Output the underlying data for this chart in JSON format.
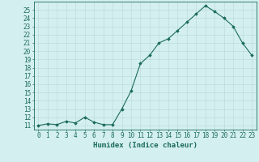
{
  "x": [
    0,
    1,
    2,
    3,
    4,
    5,
    6,
    7,
    8,
    9,
    10,
    11,
    12,
    13,
    14,
    15,
    16,
    17,
    18,
    19,
    20,
    21,
    22,
    23
  ],
  "y": [
    11.0,
    11.2,
    11.1,
    11.5,
    11.3,
    12.0,
    11.4,
    11.1,
    11.1,
    13.0,
    15.2,
    18.5,
    19.5,
    21.0,
    21.5,
    22.5,
    23.5,
    24.5,
    25.5,
    24.8,
    24.0,
    23.0,
    21.0,
    19.5
  ],
  "xlabel": "Humidex (Indice chaleur)",
  "ylabel": "",
  "title": "",
  "xlim": [
    -0.5,
    23.5
  ],
  "ylim": [
    10.5,
    26.0
  ],
  "yticks": [
    11,
    12,
    13,
    14,
    15,
    16,
    17,
    18,
    19,
    20,
    21,
    22,
    23,
    24,
    25
  ],
  "xticks": [
    0,
    1,
    2,
    3,
    4,
    5,
    6,
    7,
    8,
    9,
    10,
    11,
    12,
    13,
    14,
    15,
    16,
    17,
    18,
    19,
    20,
    21,
    22,
    23
  ],
  "xtick_labels": [
    "0",
    "1",
    "2",
    "3",
    "4",
    "5",
    "6",
    "7",
    "8",
    "9",
    "10",
    "11",
    "12",
    "13",
    "14",
    "15",
    "16",
    "17",
    "18",
    "19",
    "20",
    "21",
    "22",
    "23"
  ],
  "line_color": "#1a6b5a",
  "marker": "D",
  "marker_size": 1.8,
  "bg_color": "#d4efef",
  "grid_color_minor": "#c8e8e8",
  "grid_color_major": "#b8d8d8",
  "axis_color": "#1a6b5a",
  "tick_color": "#1a6b5a",
  "label_color": "#1a6b5a",
  "xlabel_fontsize": 6.5,
  "tick_fontsize": 5.5
}
